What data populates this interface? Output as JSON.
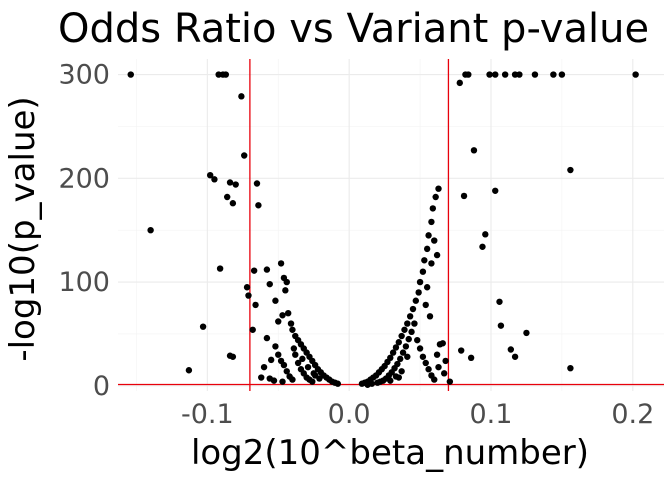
{
  "chart_data": {
    "type": "scatter",
    "title": "Odds Ratio vs Variant p-value",
    "xlabel": "log2(10^beta_number)",
    "ylabel": "-log10(p_value)",
    "xlim": [
      -0.163,
      0.222
    ],
    "ylim": [
      -5,
      315
    ],
    "x_ticks": [
      -0.1,
      0.0,
      0.1,
      0.2
    ],
    "x_tick_labels": [
      "-0.1",
      "0.0",
      "0.1",
      "0.2"
    ],
    "y_ticks": [
      0,
      100,
      200,
      300
    ],
    "y_tick_labels": [
      "0",
      "100",
      "200",
      "300"
    ],
    "grid": true,
    "reference_lines": {
      "vertical_x": [
        -0.07,
        0.07
      ],
      "horizontal_y": [
        1.3
      ],
      "color": "#e8000b"
    },
    "point_color": "#000000",
    "points": [
      {
        "x": -0.154,
        "y": 300
      },
      {
        "x": -0.092,
        "y": 300
      },
      {
        "x": -0.087,
        "y": 300
      },
      {
        "x": -0.089,
        "y": 300
      },
      {
        "x": -0.076,
        "y": 279
      },
      {
        "x": 0.082,
        "y": 300
      },
      {
        "x": 0.084,
        "y": 300
      },
      {
        "x": 0.099,
        "y": 300
      },
      {
        "x": 0.103,
        "y": 300
      },
      {
        "x": 0.11,
        "y": 300
      },
      {
        "x": 0.117,
        "y": 300
      },
      {
        "x": 0.12,
        "y": 300
      },
      {
        "x": 0.131,
        "y": 300
      },
      {
        "x": 0.144,
        "y": 300
      },
      {
        "x": 0.15,
        "y": 300
      },
      {
        "x": 0.202,
        "y": 300
      },
      {
        "x": 0.078,
        "y": 292
      },
      {
        "x": 0.088,
        "y": 227
      },
      {
        "x": 0.156,
        "y": 208
      },
      {
        "x": 0.081,
        "y": 183
      },
      {
        "x": 0.103,
        "y": 188
      },
      {
        "x": 0.096,
        "y": 146
      },
      {
        "x": 0.094,
        "y": 134
      },
      {
        "x": -0.074,
        "y": 222
      },
      {
        "x": -0.098,
        "y": 203
      },
      {
        "x": -0.095,
        "y": 199
      },
      {
        "x": -0.084,
        "y": 196
      },
      {
        "x": -0.08,
        "y": 194
      },
      {
        "x": -0.086,
        "y": 182
      },
      {
        "x": -0.082,
        "y": 176
      },
      {
        "x": -0.065,
        "y": 195
      },
      {
        "x": -0.064,
        "y": 174
      },
      {
        "x": -0.14,
        "y": 150
      },
      {
        "x": -0.091,
        "y": 113
      },
      {
        "x": -0.103,
        "y": 57
      },
      {
        "x": -0.113,
        "y": 15
      },
      {
        "x": -0.084,
        "y": 29
      },
      {
        "x": -0.082,
        "y": 28
      },
      {
        "x": 0.106,
        "y": 81
      },
      {
        "x": 0.125,
        "y": 51
      },
      {
        "x": 0.107,
        "y": 58
      },
      {
        "x": 0.114,
        "y": 35
      },
      {
        "x": 0.117,
        "y": 28
      },
      {
        "x": 0.156,
        "y": 17
      },
      {
        "x": 0.086,
        "y": 27
      },
      {
        "x": 0.079,
        "y": 34
      },
      {
        "x": -0.072,
        "y": 95
      },
      {
        "x": -0.071,
        "y": 87
      },
      {
        "x": -0.068,
        "y": 54
      },
      {
        "x": -0.066,
        "y": 78
      },
      {
        "x": -0.067,
        "y": 111
      },
      {
        "x": -0.058,
        "y": 112
      },
      {
        "x": -0.056,
        "y": 98
      },
      {
        "x": -0.052,
        "y": 82
      },
      {
        "x": -0.048,
        "y": 118
      },
      {
        "x": -0.046,
        "y": 104
      },
      {
        "x": -0.044,
        "y": 100
      },
      {
        "x": -0.045,
        "y": 92
      },
      {
        "x": -0.05,
        "y": 62
      },
      {
        "x": -0.047,
        "y": 68
      },
      {
        "x": -0.043,
        "y": 70
      },
      {
        "x": -0.041,
        "y": 60
      },
      {
        "x": -0.04,
        "y": 54
      },
      {
        "x": -0.038,
        "y": 48
      },
      {
        "x": -0.036,
        "y": 44
      },
      {
        "x": -0.034,
        "y": 40
      },
      {
        "x": -0.032,
        "y": 36
      },
      {
        "x": -0.03,
        "y": 32
      },
      {
        "x": -0.028,
        "y": 28
      },
      {
        "x": -0.026,
        "y": 24
      },
      {
        "x": -0.024,
        "y": 20
      },
      {
        "x": -0.022,
        "y": 16
      },
      {
        "x": -0.02,
        "y": 13
      },
      {
        "x": -0.018,
        "y": 10
      },
      {
        "x": -0.016,
        "y": 8
      },
      {
        "x": -0.014,
        "y": 6
      },
      {
        "x": -0.012,
        "y": 4
      },
      {
        "x": -0.01,
        "y": 3
      },
      {
        "x": -0.008,
        "y": 2
      },
      {
        "x": -0.052,
        "y": 38
      },
      {
        "x": -0.05,
        "y": 30
      },
      {
        "x": -0.048,
        "y": 24
      },
      {
        "x": -0.046,
        "y": 20
      },
      {
        "x": -0.044,
        "y": 14
      },
      {
        "x": -0.042,
        "y": 9
      },
      {
        "x": -0.04,
        "y": 6
      },
      {
        "x": -0.038,
        "y": 30
      },
      {
        "x": -0.036,
        "y": 22
      },
      {
        "x": -0.034,
        "y": 16
      },
      {
        "x": -0.032,
        "y": 12
      },
      {
        "x": -0.03,
        "y": 8
      },
      {
        "x": -0.028,
        "y": 6
      },
      {
        "x": -0.026,
        "y": 4
      },
      {
        "x": -0.024,
        "y": 10
      },
      {
        "x": -0.021,
        "y": 7
      },
      {
        "x": -0.058,
        "y": 46
      },
      {
        "x": -0.055,
        "y": 25
      },
      {
        "x": -0.06,
        "y": 18
      },
      {
        "x": -0.062,
        "y": 8
      },
      {
        "x": -0.056,
        "y": 7
      },
      {
        "x": -0.053,
        "y": 5
      },
      {
        "x": -0.047,
        "y": 4
      },
      {
        "x": -0.039,
        "y": 36
      },
      {
        "x": -0.033,
        "y": 26
      },
      {
        "x": -0.029,
        "y": 18
      },
      {
        "x": -0.025,
        "y": 12
      },
      {
        "x": 0.009,
        "y": 2
      },
      {
        "x": 0.011,
        "y": 3
      },
      {
        "x": 0.013,
        "y": 4
      },
      {
        "x": 0.015,
        "y": 6
      },
      {
        "x": 0.017,
        "y": 8
      },
      {
        "x": 0.019,
        "y": 10
      },
      {
        "x": 0.021,
        "y": 13
      },
      {
        "x": 0.023,
        "y": 16
      },
      {
        "x": 0.025,
        "y": 19
      },
      {
        "x": 0.027,
        "y": 23
      },
      {
        "x": 0.029,
        "y": 27
      },
      {
        "x": 0.031,
        "y": 32
      },
      {
        "x": 0.033,
        "y": 37
      },
      {
        "x": 0.035,
        "y": 42
      },
      {
        "x": 0.037,
        "y": 48
      },
      {
        "x": 0.039,
        "y": 54
      },
      {
        "x": 0.041,
        "y": 60
      },
      {
        "x": 0.043,
        "y": 67
      },
      {
        "x": 0.045,
        "y": 74
      },
      {
        "x": 0.047,
        "y": 82
      },
      {
        "x": 0.049,
        "y": 90
      },
      {
        "x": 0.05,
        "y": 100
      },
      {
        "x": 0.052,
        "y": 110
      },
      {
        "x": 0.053,
        "y": 121
      },
      {
        "x": 0.055,
        "y": 132
      },
      {
        "x": 0.056,
        "y": 145
      },
      {
        "x": 0.058,
        "y": 158
      },
      {
        "x": 0.059,
        "y": 171
      },
      {
        "x": 0.061,
        "y": 182
      },
      {
        "x": 0.063,
        "y": 190
      },
      {
        "x": 0.058,
        "y": 118
      },
      {
        "x": 0.06,
        "y": 140
      },
      {
        "x": 0.062,
        "y": 126
      },
      {
        "x": 0.055,
        "y": 95
      },
      {
        "x": 0.046,
        "y": 60
      },
      {
        "x": 0.044,
        "y": 52
      },
      {
        "x": 0.042,
        "y": 45
      },
      {
        "x": 0.04,
        "y": 38
      },
      {
        "x": 0.038,
        "y": 32
      },
      {
        "x": 0.036,
        "y": 26
      },
      {
        "x": 0.034,
        "y": 21
      },
      {
        "x": 0.032,
        "y": 17
      },
      {
        "x": 0.03,
        "y": 13
      },
      {
        "x": 0.028,
        "y": 10
      },
      {
        "x": 0.026,
        "y": 7
      },
      {
        "x": 0.024,
        "y": 5
      },
      {
        "x": 0.022,
        "y": 4
      },
      {
        "x": 0.02,
        "y": 3
      },
      {
        "x": 0.048,
        "y": 44
      },
      {
        "x": 0.05,
        "y": 36
      },
      {
        "x": 0.052,
        "y": 28
      },
      {
        "x": 0.054,
        "y": 22
      },
      {
        "x": 0.056,
        "y": 16
      },
      {
        "x": 0.058,
        "y": 10
      },
      {
        "x": 0.06,
        "y": 6
      },
      {
        "x": 0.062,
        "y": 30
      },
      {
        "x": 0.064,
        "y": 40
      },
      {
        "x": 0.066,
        "y": 41
      },
      {
        "x": 0.068,
        "y": 24
      },
      {
        "x": 0.067,
        "y": 12
      },
      {
        "x": 0.063,
        "y": 18
      },
      {
        "x": 0.057,
        "y": 67
      },
      {
        "x": 0.054,
        "y": 78
      },
      {
        "x": 0.041,
        "y": 28
      },
      {
        "x": 0.037,
        "y": 14
      },
      {
        "x": 0.033,
        "y": 9
      },
      {
        "x": 0.029,
        "y": 5
      },
      {
        "x": 0.071,
        "y": 4
      },
      {
        "x": 0.016,
        "y": 2
      },
      {
        "x": 0.013,
        "y": 1
      },
      {
        "x": 0.035,
        "y": 8
      }
    ]
  }
}
